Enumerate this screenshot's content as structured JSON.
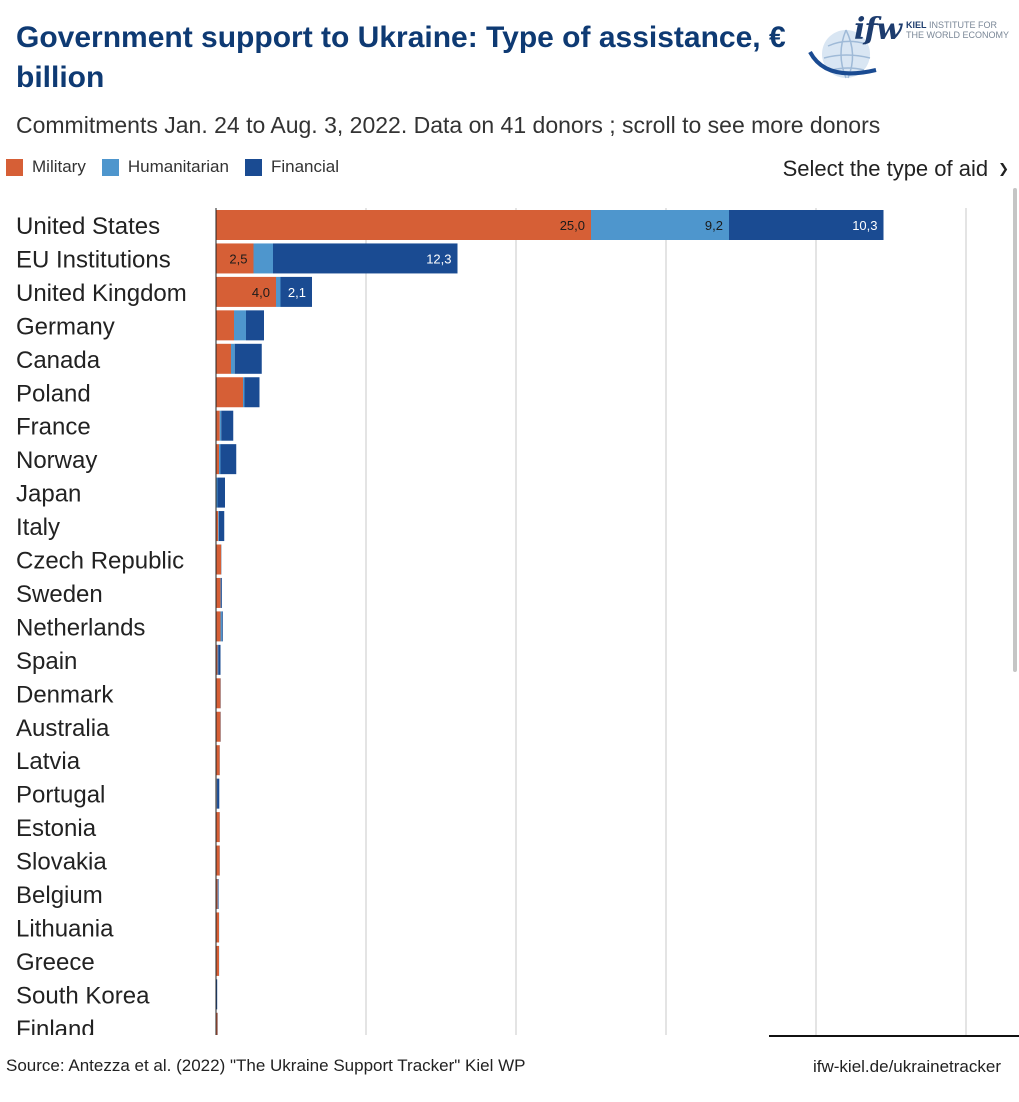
{
  "header": {
    "title": "Government support to Ukraine: Type of assistance, € billion",
    "subtitle": "Commitments Jan. 24 to Aug. 3, 2022. Data on 41 donors ; scroll to see more donors"
  },
  "logo": {
    "word": "ifw",
    "line1_bold": "KIEL",
    "line1": " INSTITUTE FOR",
    "line2": "THE WORLD ECONOMY"
  },
  "legend": [
    {
      "label": "Military",
      "color": "#d65f36"
    },
    {
      "label": "Humanitarian",
      "color": "#4e96cd"
    },
    {
      "label": "Financial",
      "color": "#1a4b92"
    }
  ],
  "controls": {
    "select_label": "Select the type of aid",
    "select_icon": "chevron-down-icon"
  },
  "chart_data": {
    "type": "bar",
    "orientation": "horizontal",
    "stacked": true,
    "title": "Government support to Ukraine: Type of assistance, € billion",
    "unit": "€ billion",
    "categories": [
      "United States",
      "EU Institutions",
      "United Kingdom",
      "Germany",
      "Canada",
      "Poland",
      "France",
      "Norway",
      "Japan",
      "Italy",
      "Czech Republic",
      "Sweden",
      "Netherlands",
      "Spain",
      "Denmark",
      "Australia",
      "Latvia",
      "Portugal",
      "Estonia",
      "Slovakia",
      "Belgium",
      "Lithuania",
      "Greece",
      "South Korea",
      "Finland"
    ],
    "series": [
      {
        "name": "Military",
        "color": "#d65f36",
        "values": [
          25.0,
          2.5,
          4.0,
          1.2,
          1.0,
          1.8,
          0.25,
          0.2,
          0.0,
          0.15,
          0.35,
          0.3,
          0.3,
          0.1,
          0.3,
          0.3,
          0.25,
          0.05,
          0.25,
          0.25,
          0.1,
          0.2,
          0.2,
          0.0,
          0.1
        ]
      },
      {
        "name": "Humanitarian",
        "color": "#4e96cd",
        "values": [
          9.2,
          1.3,
          0.3,
          0.8,
          0.25,
          0.1,
          0.1,
          0.1,
          0.1,
          0.05,
          0.02,
          0.05,
          0.1,
          0.05,
          0.02,
          0.02,
          0.01,
          0.02,
          0.01,
          0.01,
          0.02,
          0.01,
          0.01,
          0.03,
          0.02
        ]
      },
      {
        "name": "Financial",
        "color": "#1a4b92",
        "values": [
          10.3,
          12.3,
          2.1,
          1.2,
          1.8,
          1.0,
          0.8,
          1.05,
          0.5,
          0.35,
          0.0,
          0.05,
          0.05,
          0.15,
          0.0,
          0.0,
          0.0,
          0.15,
          0.0,
          0.0,
          0.05,
          0.0,
          0.0,
          0.05,
          0.0
        ]
      }
    ],
    "data_labels": [
      {
        "category": "United States",
        "series": "Military",
        "text": "25,0"
      },
      {
        "category": "United States",
        "series": "Humanitarian",
        "text": "9,2"
      },
      {
        "category": "United States",
        "series": "Financial",
        "text": "10,3"
      },
      {
        "category": "EU Institutions",
        "series": "Military",
        "text": "2,5"
      },
      {
        "category": "EU Institutions",
        "series": "Financial",
        "text": "12,3"
      },
      {
        "category": "United Kingdom",
        "series": "Military",
        "text": "4,0"
      },
      {
        "category": "United Kingdom",
        "series": "Financial",
        "text": "2,1"
      }
    ],
    "xlim": [
      0,
      50
    ],
    "gridlines": [
      10,
      20,
      30,
      40,
      50
    ],
    "grid": true
  },
  "footer": {
    "source": "Source: Antezza et al. (2022) \"The Ukraine Support Tracker\" Kiel WP",
    "link": "ifw-kiel.de/ukrainetracker"
  }
}
